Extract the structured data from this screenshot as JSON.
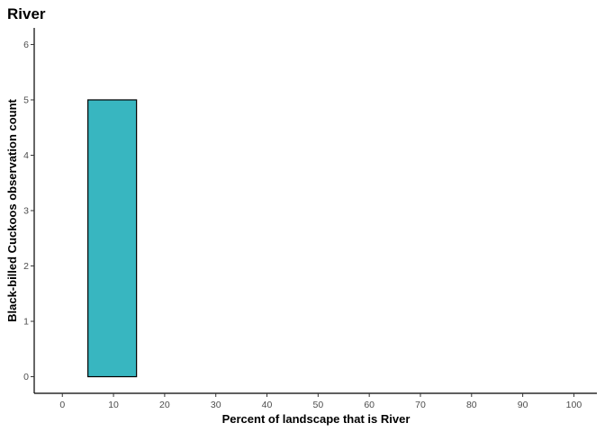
{
  "chart_data": {
    "type": "bar",
    "title": "River",
    "xlabel": "Percent of landscape that is River",
    "ylabel": "Black-billed Cuckoos observation count",
    "xlim": [
      -5.5,
      104.5
    ],
    "ylim": [
      -0.3,
      6.3
    ],
    "xticks": [
      0,
      10,
      20,
      30,
      40,
      50,
      60,
      70,
      80,
      90,
      100
    ],
    "yticks": [
      0,
      1,
      2,
      3,
      4,
      5,
      6
    ],
    "bins": [
      {
        "x_start": 5,
        "x_end": 14.5,
        "count": 5
      }
    ],
    "bar_color": "#38B6C0",
    "bar_outline": "#000000",
    "grid": false
  }
}
